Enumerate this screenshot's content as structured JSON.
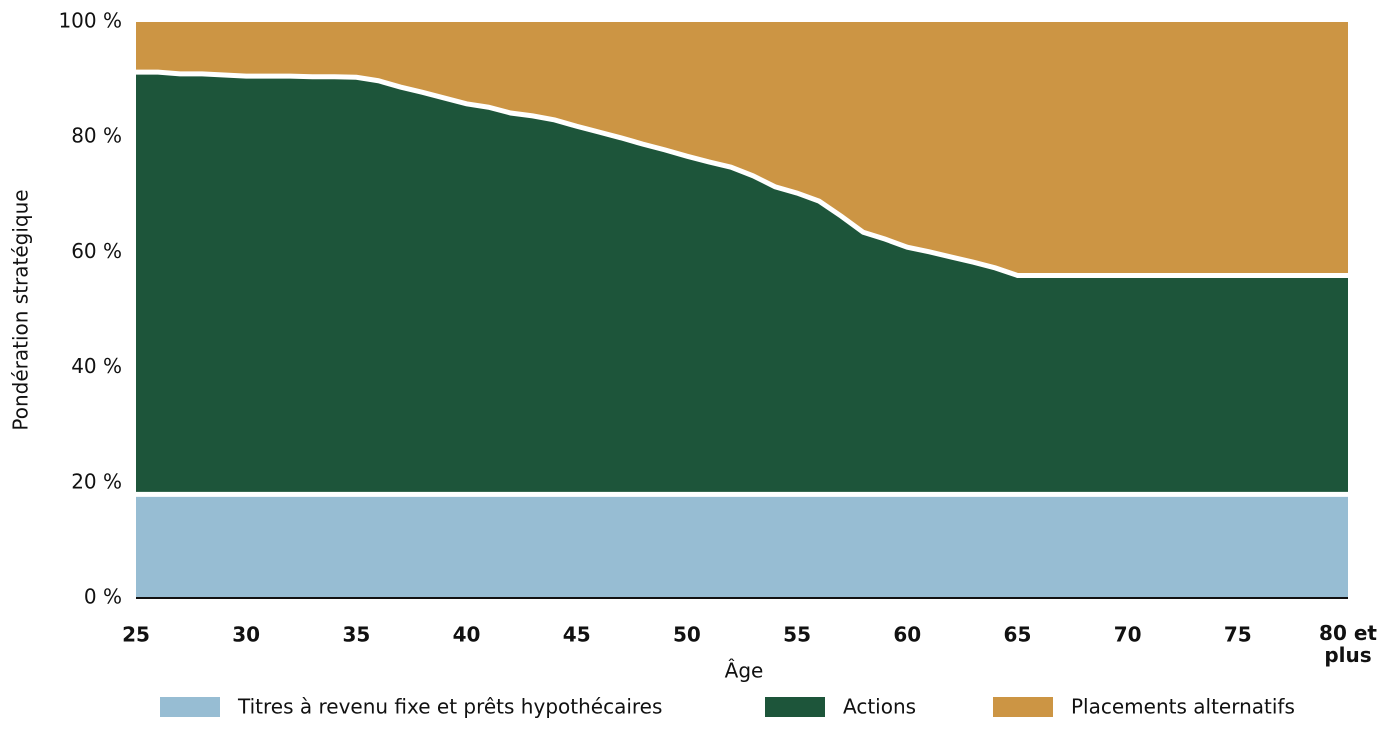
{
  "chart_data": {
    "type": "stacked_area",
    "x": [
      25,
      26,
      27,
      28,
      29,
      30,
      31,
      32,
      33,
      34,
      35,
      36,
      37,
      38,
      39,
      40,
      41,
      42,
      43,
      44,
      45,
      46,
      47,
      48,
      49,
      50,
      51,
      52,
      53,
      54,
      55,
      56,
      57,
      58,
      59,
      60,
      61,
      62,
      63,
      64,
      65,
      66,
      67,
      68,
      69,
      70,
      71,
      72,
      73,
      74,
      75,
      76,
      77,
      78,
      79,
      80
    ],
    "series": [
      {
        "name": "Titres à revenu fixe et prêts hypothécaires",
        "color": "#97bdd3",
        "values": [
          18,
          18,
          18,
          18,
          18,
          18,
          18,
          18,
          18,
          18,
          18,
          18,
          18,
          18,
          18,
          18,
          18,
          18,
          18,
          18,
          18,
          18,
          18,
          18,
          18,
          18,
          18,
          18,
          18,
          18,
          18,
          18,
          18,
          18,
          18,
          18,
          18,
          18,
          18,
          18,
          18,
          18,
          18,
          18,
          18,
          18,
          18,
          18,
          18,
          18,
          18,
          18,
          18,
          18,
          18,
          18
        ]
      },
      {
        "name": "Actions",
        "color": "#1d553a",
        "values": [
          73.3,
          73.3,
          73,
          73,
          72.8,
          72.6,
          72.6,
          72.6,
          72.5,
          72.5,
          72.4,
          71.8,
          70.7,
          69.8,
          68.8,
          67.8,
          67.2,
          66.2,
          65.7,
          65,
          63.9,
          62.9,
          61.9,
          60.8,
          59.8,
          58.7,
          57.7,
          56.8,
          55.3,
          53.4,
          52.3,
          50.9,
          48.3,
          45.5,
          44.3,
          42.9,
          42.1,
          41.2,
          40.3,
          39.3,
          38,
          38,
          38,
          38,
          38,
          38,
          38,
          38,
          38,
          38,
          38,
          38,
          38,
          38,
          38,
          38
        ]
      },
      {
        "name": "Placements alternatifs",
        "color": "#cc9544",
        "values": [
          8.7,
          8.7,
          9,
          9,
          9.2,
          9.4,
          9.4,
          9.4,
          9.5,
          9.5,
          9.6,
          10.2,
          11.3,
          12.2,
          13.2,
          14.2,
          14.8,
          15.8,
          16.3,
          17,
          18.1,
          19.1,
          20.1,
          21.2,
          22.2,
          23.3,
          24.3,
          25.2,
          26.7,
          28.6,
          29.7,
          31.1,
          33.7,
          36.5,
          37.7,
          39.1,
          39.9,
          40.8,
          41.7,
          42.7,
          44,
          44,
          44,
          44,
          44,
          44,
          44,
          44,
          44,
          44,
          44,
          44,
          44,
          44,
          44,
          44
        ]
      }
    ],
    "xlabel": "Âge",
    "ylabel": "Pondération stratégique",
    "xlim": [
      25,
      80
    ],
    "xticks": [
      25,
      30,
      35,
      40,
      45,
      50,
      55,
      60,
      65,
      70,
      75,
      {
        "value": 80,
        "label": "80 et plus"
      }
    ],
    "ylim": [
      0,
      100
    ],
    "yticks": [
      {
        "value": 0,
        "label": "0 %"
      },
      {
        "value": 20,
        "label": "20 %"
      },
      {
        "value": 40,
        "label": "40 %"
      },
      {
        "value": 60,
        "label": "60 %"
      },
      {
        "value": 80,
        "label": "80 %"
      },
      {
        "value": 100,
        "label": "100 %"
      }
    ],
    "legend": "bottom"
  }
}
